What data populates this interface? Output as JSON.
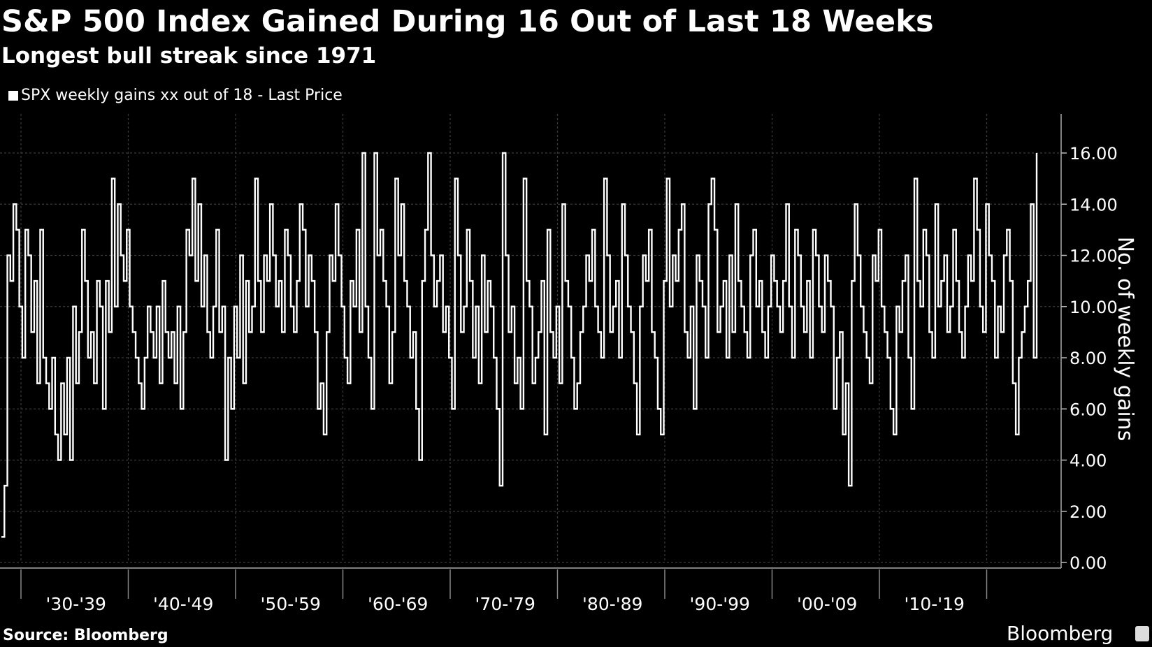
{
  "chart_data": {
    "type": "line",
    "title": "S&P 500 Index Gained During 16 Out of Last 18 Weeks",
    "subtitle": "Longest bull streak since 1971",
    "legend": [
      "SPX weekly gains xx out of 18 - Last Price"
    ],
    "legend_position": "top-left",
    "ylabel": "No. of weekly gains",
    "ylim": [
      0,
      16
    ],
    "y_ticks": [
      "0.00",
      "2.00",
      "4.00",
      "6.00",
      "8.00",
      "10.00",
      "12.00",
      "14.00",
      "16.00"
    ],
    "y_axis_side": "right",
    "grid": true,
    "x_categories": [
      "'30-'39",
      "'40-'49",
      "'50-'59",
      "'60-'69",
      "'70-'79",
      "'80-'89",
      "'90-'99",
      "'00-'09",
      "'10-'19"
    ],
    "series": [
      {
        "name": "SPX weekly gains xx out of 18 - Last Price",
        "color": "#ffffff",
        "x_start": 1928.0,
        "x_end": 2024.0,
        "values": [
          1,
          3,
          12,
          11,
          14,
          13,
          10,
          8,
          13,
          12,
          9,
          11,
          7,
          13,
          8,
          7,
          6,
          8,
          5,
          4,
          7,
          5,
          8,
          4,
          10,
          7,
          9,
          13,
          11,
          8,
          9,
          7,
          11,
          10,
          6,
          11,
          9,
          15,
          10,
          14,
          12,
          11,
          13,
          10,
          9,
          8,
          7,
          6,
          8,
          10,
          9,
          8,
          10,
          7,
          11,
          9,
          8,
          9,
          7,
          10,
          6,
          9,
          13,
          12,
          15,
          11,
          14,
          10,
          12,
          9,
          8,
          10,
          13,
          9,
          10,
          4,
          8,
          6,
          10,
          8,
          12,
          7,
          11,
          9,
          10,
          15,
          11,
          9,
          12,
          11,
          14,
          12,
          10,
          11,
          9,
          13,
          12,
          10,
          9,
          11,
          14,
          13,
          10,
          12,
          11,
          9,
          6,
          7,
          5,
          9,
          12,
          11,
          14,
          12,
          10,
          8,
          7,
          11,
          10,
          13,
          9,
          16,
          10,
          8,
          6,
          16,
          12,
          13,
          11,
          10,
          7,
          9,
          15,
          12,
          14,
          11,
          10,
          8,
          9,
          6,
          4,
          11,
          13,
          16,
          12,
          10,
          11,
          12,
          9,
          10,
          8,
          6,
          15,
          12,
          9,
          10,
          13,
          11,
          8,
          10,
          7,
          12,
          9,
          11,
          10,
          8,
          6,
          3,
          16,
          12,
          9,
          10,
          7,
          8,
          6,
          15,
          11,
          10,
          7,
          8,
          9,
          11,
          5,
          13,
          9,
          8,
          10,
          7,
          14,
          11,
          10,
          8,
          6,
          7,
          9,
          10,
          12,
          11,
          13,
          10,
          9,
          8,
          15,
          12,
          9,
          10,
          11,
          8,
          14,
          12,
          10,
          9,
          7,
          5,
          10,
          12,
          11,
          13,
          9,
          8,
          6,
          5,
          11,
          15,
          10,
          12,
          11,
          13,
          14,
          9,
          8,
          10,
          6,
          12,
          11,
          10,
          8,
          14,
          15,
          13,
          9,
          10,
          11,
          8,
          12,
          9,
          14,
          11,
          10,
          9,
          8,
          12,
          13,
          10,
          11,
          9,
          8,
          10,
          12,
          11,
          10,
          9,
          11,
          14,
          10,
          8,
          13,
          12,
          10,
          9,
          11,
          8,
          13,
          12,
          10,
          9,
          12,
          11,
          10,
          6,
          8,
          9,
          5,
          7,
          3,
          11,
          14,
          12,
          10,
          9,
          8,
          7,
          12,
          11,
          13,
          10,
          9,
          8,
          6,
          5,
          10,
          9,
          11,
          12,
          8,
          6,
          15,
          11,
          10,
          13,
          12,
          9,
          8,
          14,
          10,
          11,
          12,
          9,
          10,
          13,
          11,
          9,
          8,
          10,
          12,
          11,
          15,
          13,
          10,
          9,
          14,
          12,
          11,
          8,
          10,
          9,
          12,
          13,
          11,
          7,
          5,
          8,
          9,
          10,
          11,
          14,
          8,
          16
        ]
      }
    ]
  },
  "source_label": "Source: Bloomberg",
  "brand_label": "Bloomberg"
}
